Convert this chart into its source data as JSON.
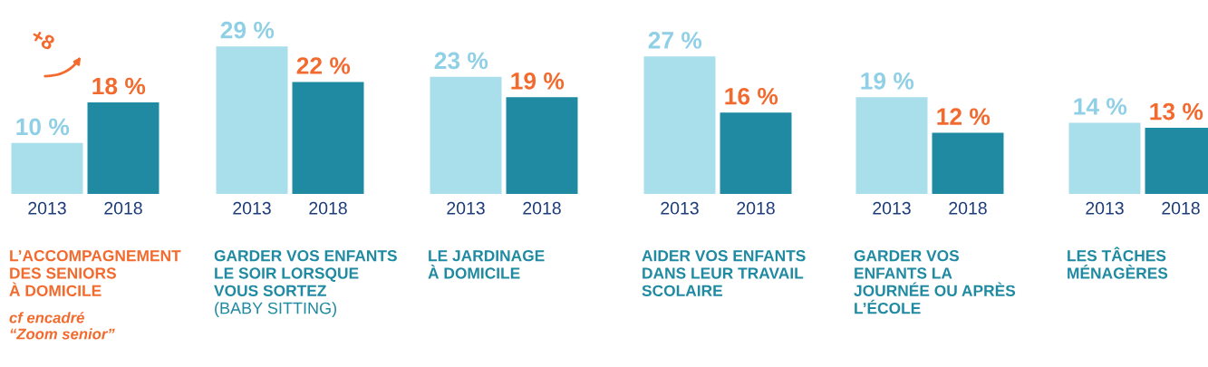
{
  "chart_data": [
    {
      "type": "bar",
      "title": "L’ACCOMPAGNEMENT\nDES SENIORS\nÀ DOMICILE",
      "categories": [
        "2013",
        "2018"
      ],
      "values": [
        10,
        18
      ],
      "colors": [
        "#a9deeb",
        "#1f8aa1"
      ],
      "value_labels": [
        "10 %",
        "18 %"
      ],
      "tick_labels": "x",
      "annotations": [
        "+8",
        "cf encadré\n“Zoom senior”"
      ]
    },
    {
      "type": "bar",
      "title": "GARDER VOS ENFANTS\nLE SOIR LORSQUE\nVOUS SORTEZ",
      "subtitle": "(BABY SITTING)",
      "categories": [
        "2013",
        "2018"
      ],
      "values": [
        29,
        22
      ],
      "colors": [
        "#a9deeb",
        "#1f8aa1"
      ],
      "value_labels": [
        "29 %",
        "22 %"
      ],
      "tick_labels": "x"
    },
    {
      "type": "bar",
      "title": "LE JARDINAGE\nÀ DOMICILE",
      "categories": [
        "2013",
        "2018"
      ],
      "values": [
        23,
        19
      ],
      "colors": [
        "#a9deeb",
        "#1f8aa1"
      ],
      "value_labels": [
        "23 %",
        "19 %"
      ],
      "tick_labels": "x"
    },
    {
      "type": "bar",
      "title": "AIDER VOS ENFANTS\nDANS LEUR TRAVAIL\nSCOLAIRE",
      "categories": [
        "2013",
        "2018"
      ],
      "values": [
        27,
        16
      ],
      "colors": [
        "#a9deeb",
        "#1f8aa1"
      ],
      "value_labels": [
        "27 %",
        "16 %"
      ],
      "tick_labels": "x"
    },
    {
      "type": "bar",
      "title": "GARDER VOS\nENFANTS LA\nJOURNÉE OU APRÈS\nL’ÉCOLE",
      "categories": [
        "2013",
        "2018"
      ],
      "values": [
        19,
        12
      ],
      "colors": [
        "#a9deeb",
        "#1f8aa1"
      ],
      "value_labels": [
        "19 %",
        "12 %"
      ],
      "tick_labels": "x"
    },
    {
      "type": "bar",
      "title": "LES TÂCHES\nMÉNAGÈRES",
      "categories": [
        "2013",
        "2018"
      ],
      "values": [
        14,
        13
      ],
      "colors": [
        "#a9deeb",
        "#1f8aa1"
      ],
      "value_labels": [
        "14 %",
        "13 %"
      ],
      "tick_labels": "x"
    }
  ]
}
